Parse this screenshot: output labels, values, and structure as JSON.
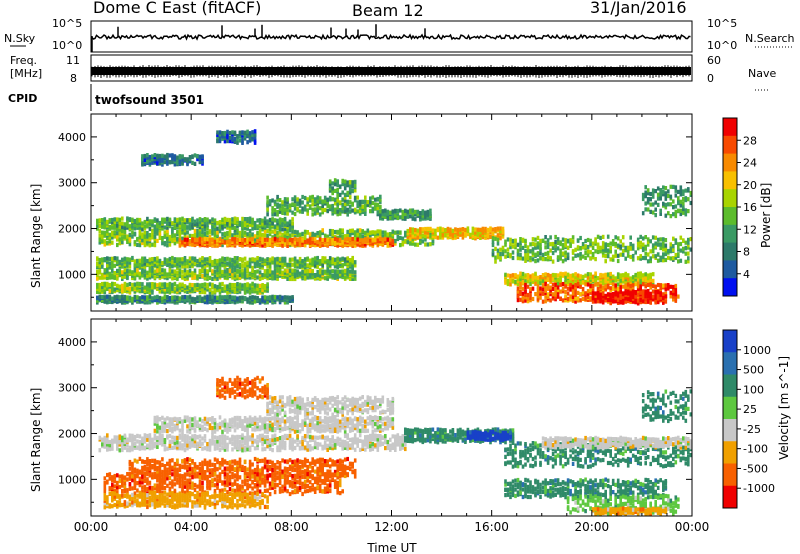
{
  "header": {
    "title": "Dome C East (fitACF)",
    "beam": "Beam 12",
    "date": "31/Jan/2016"
  },
  "strip_nsky": {
    "label": "N.Sky",
    "right_label": "N.Search",
    "left_ticks": [
      "10^5",
      "10^0"
    ],
    "right_ticks": [
      "10^5",
      "10^0"
    ]
  },
  "strip_freq": {
    "label_line1": "Freq.",
    "label_line2": "[MHz]",
    "left_ticks": [
      "11",
      "8"
    ],
    "right_label": "Nave",
    "right_ticks": [
      "60",
      "0"
    ]
  },
  "strip_cpid": {
    "label": "CPID",
    "program": "twofsound 3501"
  },
  "chart_data": [
    {
      "type": "heatmap",
      "title": "",
      "xlabel": "Time UT",
      "ylabel": "Slant Range [km]",
      "xlim": [
        0,
        24
      ],
      "ylim": [
        200,
        4500
      ],
      "y_ticks": [
        "1000",
        "2000",
        "3000",
        "4000"
      ],
      "colorbar": {
        "label": "Power [dB]",
        "ticks": [
          "28",
          "24",
          "20",
          "16",
          "12",
          "8",
          "4"
        ],
        "colors": [
          "#f00000",
          "#f84a00",
          "#f88a00",
          "#f8c000",
          "#a8d400",
          "#5cbc2c",
          "#3a9a64",
          "#2d7a6a",
          "#1e5aa0",
          "#0010f0"
        ]
      },
      "bands": [
        {
          "t0": 0.3,
          "t1": 13.6,
          "r": 1800,
          "w": 150,
          "v": 14
        },
        {
          "t0": 3.5,
          "t1": 12.0,
          "r": 1700,
          "w": 70,
          "v": 24
        },
        {
          "t0": 12.6,
          "t1": 16.4,
          "r": 1900,
          "w": 100,
          "v": 20
        },
        {
          "t0": 0.2,
          "t1": 8.0,
          "r": 2100,
          "w": 110,
          "v": 12
        },
        {
          "t0": 7.0,
          "t1": 11.5,
          "r": 2500,
          "w": 180,
          "v": 12
        },
        {
          "t0": 11.5,
          "t1": 13.5,
          "r": 2300,
          "w": 90,
          "v": 10
        },
        {
          "t0": 16.0,
          "t1": 24.0,
          "r": 1550,
          "w": 250,
          "v": 13
        },
        {
          "t0": 0.2,
          "t1": 10.5,
          "r": 1250,
          "w": 100,
          "v": 13
        },
        {
          "t0": 0.2,
          "t1": 10.5,
          "r": 1000,
          "w": 90,
          "v": 14
        },
        {
          "t0": 0.2,
          "t1": 7.0,
          "r": 700,
          "w": 90,
          "v": 14
        },
        {
          "t0": 0.2,
          "t1": 8.0,
          "r": 450,
          "w": 60,
          "v": 8
        },
        {
          "t0": 16.5,
          "t1": 22.5,
          "r": 900,
          "w": 110,
          "v": 18
        },
        {
          "t0": 17.0,
          "t1": 23.5,
          "r": 600,
          "w": 180,
          "v": 26
        },
        {
          "t0": 20.0,
          "t1": 23.0,
          "r": 500,
          "w": 120,
          "v": 30
        },
        {
          "t0": 9.5,
          "t1": 10.5,
          "r": 2900,
          "w": 150,
          "v": 11
        },
        {
          "t0": 22.0,
          "t1": 24.0,
          "r": 2600,
          "w": 300,
          "v": 10
        },
        {
          "t0": 2.0,
          "t1": 4.5,
          "r": 3500,
          "w": 100,
          "v": 6
        },
        {
          "t0": 5.0,
          "t1": 6.5,
          "r": 4000,
          "w": 120,
          "v": 5
        }
      ]
    },
    {
      "type": "heatmap",
      "title": "",
      "xlabel": "Time UT",
      "ylabel": "Slant Range [km]",
      "xlim": [
        0,
        24
      ],
      "ylim": [
        200,
        4500
      ],
      "x_ticks": [
        "00:00",
        "04:00",
        "08:00",
        "12:00",
        "16:00",
        "20:00",
        "00:00"
      ],
      "y_ticks": [
        "1000",
        "2000",
        "3000",
        "4000"
      ],
      "colorbar": {
        "label": "Velocity [m s^-1]",
        "ticks": [
          "1000",
          "500",
          "100",
          "25",
          "-25",
          "-100",
          "-500",
          "-1000"
        ],
        "colors": [
          "#1840c8",
          "#2a70b0",
          "#2f8a68",
          "#5ec840",
          "#c8c8c8",
          "#f0a000",
          "#f86000",
          "#f00000"
        ]
      },
      "bands": [
        {
          "t0": 0.3,
          "t1": 12.5,
          "r": 1800,
          "w": 150,
          "c": 4
        },
        {
          "t0": 2.5,
          "t1": 12.0,
          "r": 2200,
          "w": 150,
          "c": 4
        },
        {
          "t0": 7.0,
          "t1": 12.0,
          "r": 2600,
          "w": 180,
          "c": 4
        },
        {
          "t0": 12.5,
          "t1": 16.8,
          "r": 1950,
          "w": 130,
          "c": 2
        },
        {
          "t0": 15.0,
          "t1": 16.8,
          "r": 1950,
          "w": 80,
          "c": 0
        },
        {
          "t0": 16.5,
          "t1": 24.0,
          "r": 1550,
          "w": 250,
          "c": 2
        },
        {
          "t0": 18.0,
          "t1": 24.0,
          "r": 1800,
          "w": 100,
          "c": 4
        },
        {
          "t0": 1.5,
          "t1": 10.5,
          "r": 1250,
          "w": 180,
          "c": 6
        },
        {
          "t0": 0.5,
          "t1": 10.0,
          "r": 900,
          "w": 200,
          "c": 6
        },
        {
          "t0": 0.5,
          "t1": 7.0,
          "r": 550,
          "w": 150,
          "c": 5
        },
        {
          "t0": 16.5,
          "t1": 23.0,
          "r": 800,
          "w": 180,
          "c": 2
        },
        {
          "t0": 19.0,
          "t1": 23.5,
          "r": 450,
          "w": 180,
          "c": 3
        },
        {
          "t0": 20.0,
          "t1": 23.0,
          "r": 280,
          "w": 80,
          "c": 5
        },
        {
          "t0": 5.0,
          "t1": 7.0,
          "r": 3000,
          "w": 200,
          "c": 6
        },
        {
          "t0": 22.0,
          "t1": 24.0,
          "r": 2600,
          "w": 300,
          "c": 2
        }
      ]
    }
  ]
}
